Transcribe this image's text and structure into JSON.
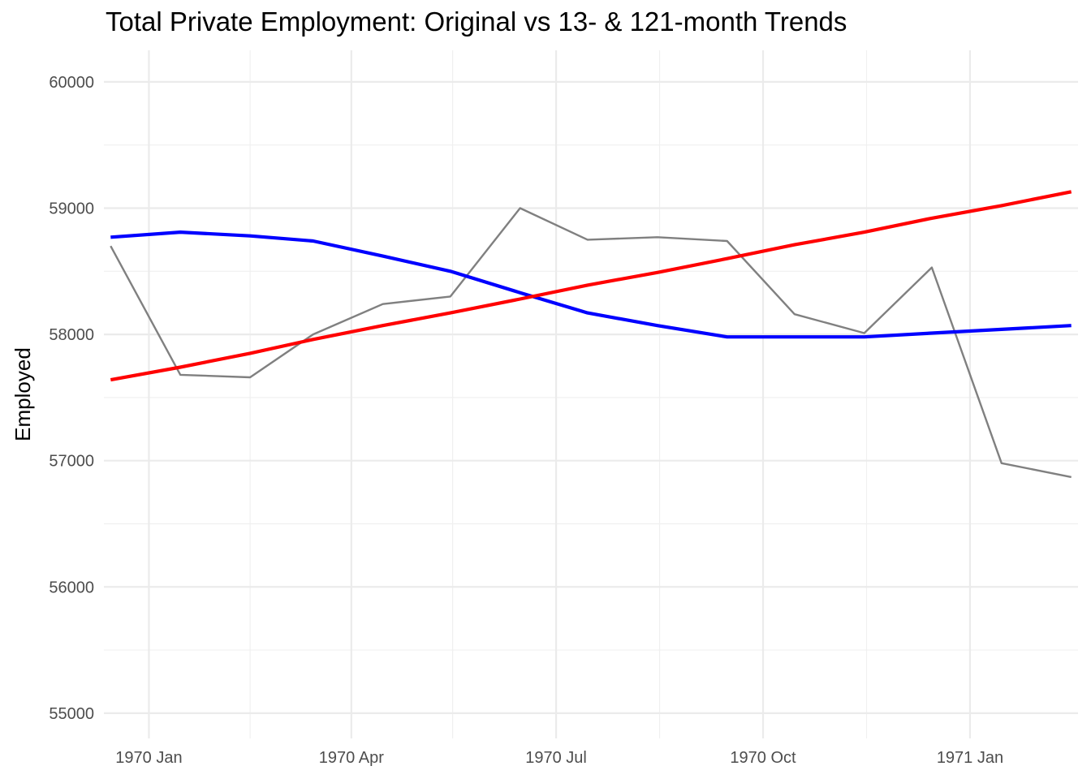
{
  "chart_data": {
    "type": "line",
    "title": "Total Private Employment: Original vs 13- & 121-month Trends",
    "xlabel": "",
    "ylabel": "Employed",
    "x": [
      "1969-12",
      "1970-01",
      "1970-02",
      "1970-03",
      "1970-04",
      "1970-05",
      "1970-06",
      "1970-07",
      "1970-08",
      "1970-09",
      "1970-10",
      "1970-11",
      "1970-12",
      "1971-01",
      "1971-02"
    ],
    "xlim": [
      "1969-12-12",
      "1971-02-18"
    ],
    "ylim": [
      54800,
      60250
    ],
    "x_ticks": [
      {
        "date": "1970-01-01",
        "label": "1970 Jan"
      },
      {
        "date": "1970-04-01",
        "label": "1970 Apr"
      },
      {
        "date": "1970-07-01",
        "label": "1970 Jul"
      },
      {
        "date": "1970-10-01",
        "label": "1970 Oct"
      },
      {
        "date": "1971-01-01",
        "label": "1971 Jan"
      }
    ],
    "x_minor_ticks": [
      "1970-02-15",
      "1970-05-16",
      "1970-08-16",
      "1970-11-16"
    ],
    "y_ticks": [
      55000,
      56000,
      57000,
      58000,
      59000,
      60000
    ],
    "y_minor_ticks": [
      55500,
      56500,
      57500,
      58500,
      59500
    ],
    "grid": true,
    "legend": "none",
    "series": [
      {
        "color": "#808080",
        "values": [
          58700,
          57680,
          57660,
          58000,
          58240,
          58300,
          59000,
          58750,
          58770,
          58740,
          58160,
          58010,
          58530,
          56980,
          56870
        ]
      },
      {
        "color": "#0000ff",
        "values": [
          58770,
          58810,
          58780,
          58740,
          58620,
          58500,
          58330,
          58170,
          58070,
          57980,
          57980,
          57980,
          58010,
          58040,
          58070
        ]
      },
      {
        "color": "#ff0000",
        "values": [
          57640,
          57740,
          57850,
          57960,
          58070,
          58170,
          58280,
          58390,
          58490,
          58600,
          58710,
          58810,
          58920,
          59020,
          59130
        ]
      }
    ]
  }
}
